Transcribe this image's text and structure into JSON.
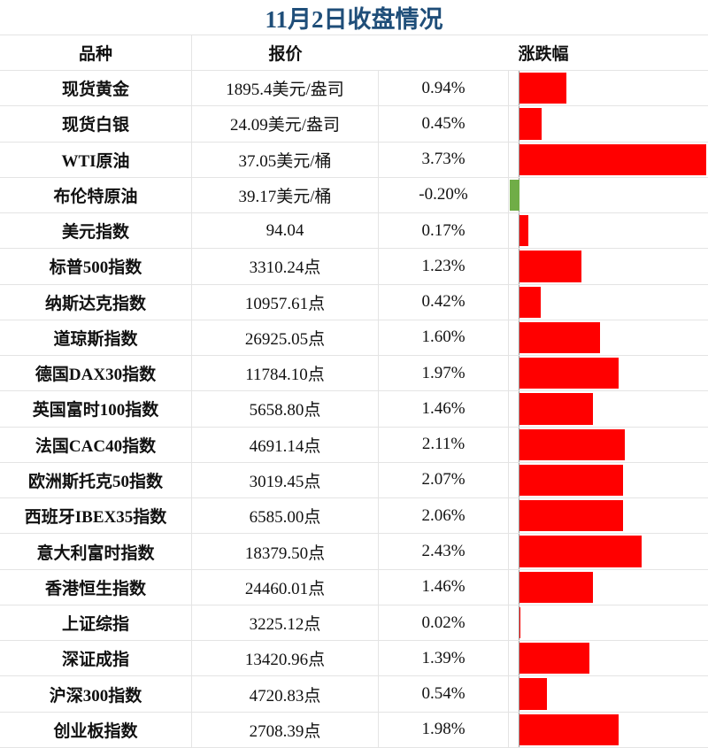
{
  "title": "11月2日收盘情况",
  "headers": {
    "name": "品种",
    "price": "报价",
    "change": "涨跌幅"
  },
  "colors": {
    "up": "#ff0000",
    "down": "#70ad47",
    "title": "#1f4e79"
  },
  "rows": [
    {
      "name": "现货黄金",
      "price": "1895.4美元/盎司",
      "change": "0.94%",
      "value": 0.94
    },
    {
      "name": "现货白银",
      "price": "24.09美元/盎司",
      "change": "0.45%",
      "value": 0.45
    },
    {
      "name": "WTI原油",
      "price": "37.05美元/桶",
      "change": "3.73%",
      "value": 3.73
    },
    {
      "name": "布伦特原油",
      "price": "39.17美元/桶",
      "change": "-0.20%",
      "value": -0.2
    },
    {
      "name": "美元指数",
      "price": "94.04",
      "change": "0.17%",
      "value": 0.17
    },
    {
      "name": "标普500指数",
      "price": "3310.24点",
      "change": "1.23%",
      "value": 1.23
    },
    {
      "name": "纳斯达克指数",
      "price": "10957.61点",
      "change": "0.42%",
      "value": 0.42
    },
    {
      "name": "道琼斯指数",
      "price": "26925.05点",
      "change": "1.60%",
      "value": 1.6
    },
    {
      "name": "德国DAX30指数",
      "price": "11784.10点",
      "change": "1.97%",
      "value": 1.97
    },
    {
      "name": "英国富时100指数",
      "price": "5658.80点",
      "change": "1.46%",
      "value": 1.46
    },
    {
      "name": "法国CAC40指数",
      "price": "4691.14点",
      "change": "2.11%",
      "value": 2.11
    },
    {
      "name": "欧洲斯托克50指数",
      "price": "3019.45点",
      "change": "2.07%",
      "value": 2.07
    },
    {
      "name": "西班牙IBEX35指数",
      "price": "6585.00点",
      "change": "2.06%",
      "value": 2.06
    },
    {
      "name": "意大利富时指数",
      "price": "18379.50点",
      "change": "2.43%",
      "value": 2.43
    },
    {
      "name": "香港恒生指数",
      "price": "24460.01点",
      "change": "1.46%",
      "value": 1.46
    },
    {
      "name": "上证综指",
      "price": "3225.12点",
      "change": "0.02%",
      "value": 0.02
    },
    {
      "name": "深证成指",
      "price": "13420.96点",
      "change": "1.39%",
      "value": 1.39
    },
    {
      "name": "沪深300指数",
      "price": "4720.83点",
      "change": "0.54%",
      "value": 0.54
    },
    {
      "name": "创业板指数",
      "price": "2708.39点",
      "change": "1.98%",
      "value": 1.98
    }
  ]
}
